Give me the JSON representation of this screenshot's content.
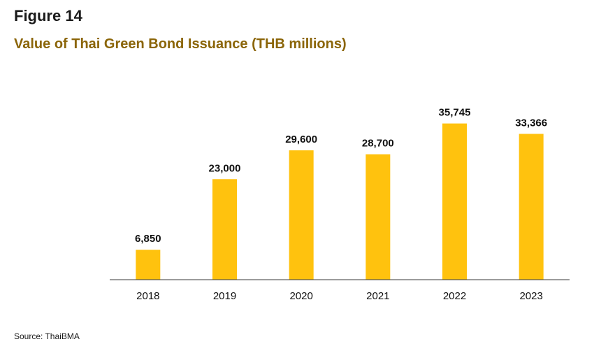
{
  "figure_label": "Figure 14",
  "source": "Source: ThaiBMA",
  "colors": {
    "bar": "#FFC20E",
    "title": "#8B6508",
    "axis": "#3a3a3a"
  },
  "chart_data": {
    "type": "bar",
    "title": "Value of Thai Green Bond Issuance (THB millions)",
    "categories": [
      "2018",
      "2019",
      "2020",
      "2021",
      "2022",
      "2023"
    ],
    "values": [
      6850,
      23000,
      29600,
      28700,
      35745,
      33366
    ],
    "value_labels": [
      "6,850",
      "23,000",
      "29,600",
      "28,700",
      "35,745",
      "33,366"
    ],
    "ylim": [
      0,
      40000
    ],
    "grid": false,
    "legend": "none"
  }
}
